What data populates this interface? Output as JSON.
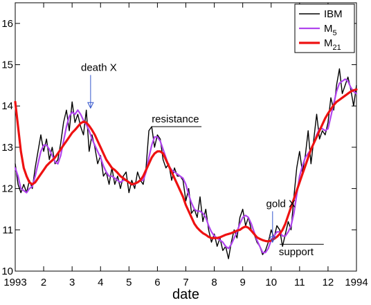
{
  "chart_data": {
    "type": "line",
    "xlabel": "date",
    "ylabel": "",
    "xlim": [
      1,
      13
    ],
    "ylim": [
      10,
      16.5
    ],
    "x_ticks": [
      {
        "value": 1,
        "label": "1993"
      },
      {
        "value": 2,
        "label": "2"
      },
      {
        "value": 3,
        "label": "3"
      },
      {
        "value": 4,
        "label": "4"
      },
      {
        "value": 5,
        "label": "5"
      },
      {
        "value": 6,
        "label": "6"
      },
      {
        "value": 7,
        "label": "7"
      },
      {
        "value": 8,
        "label": "8"
      },
      {
        "value": 9,
        "label": "9"
      },
      {
        "value": 10,
        "label": "10"
      },
      {
        "value": 11,
        "label": "11"
      },
      {
        "value": 12,
        "label": "12"
      },
      {
        "value": 13,
        "label": "1994"
      }
    ],
    "y_ticks": [
      10,
      11,
      12,
      13,
      14,
      15,
      16
    ],
    "grid": false,
    "legend_position": "top-right",
    "series": [
      {
        "name": "IBM",
        "color": "#000000",
        "x": [
          1.0,
          1.1,
          1.2,
          1.3,
          1.4,
          1.5,
          1.6,
          1.7,
          1.8,
          1.9,
          2.0,
          2.1,
          2.2,
          2.3,
          2.4,
          2.5,
          2.6,
          2.7,
          2.8,
          2.9,
          3.0,
          3.1,
          3.2,
          3.3,
          3.4,
          3.5,
          3.6,
          3.7,
          3.8,
          3.9,
          4.0,
          4.1,
          4.2,
          4.3,
          4.4,
          4.5,
          4.6,
          4.7,
          4.8,
          4.9,
          5.0,
          5.1,
          5.2,
          5.3,
          5.4,
          5.5,
          5.6,
          5.7,
          5.8,
          5.9,
          6.0,
          6.1,
          6.2,
          6.3,
          6.4,
          6.5,
          6.6,
          6.7,
          6.8,
          6.9,
          7.0,
          7.1,
          7.2,
          7.3,
          7.4,
          7.5,
          7.6,
          7.7,
          7.8,
          7.9,
          8.0,
          8.1,
          8.2,
          8.3,
          8.4,
          8.5,
          8.6,
          8.7,
          8.8,
          8.9,
          9.0,
          9.1,
          9.2,
          9.3,
          9.4,
          9.5,
          9.6,
          9.7,
          9.8,
          9.9,
          10.0,
          10.1,
          10.2,
          10.3,
          10.4,
          10.5,
          10.6,
          10.7,
          10.8,
          10.9,
          11.0,
          11.1,
          11.2,
          11.3,
          11.4,
          11.5,
          11.6,
          11.7,
          11.8,
          11.9,
          12.0,
          12.1,
          12.2,
          12.3,
          12.4,
          12.5,
          12.6,
          12.7,
          12.8,
          12.9,
          13.0
        ],
        "values": [
          12.6,
          12.1,
          11.9,
          12.1,
          11.9,
          12.2,
          12.0,
          12.5,
          12.9,
          13.3,
          12.9,
          13.2,
          12.7,
          13.0,
          12.6,
          12.7,
          13.1,
          13.6,
          13.9,
          13.4,
          14.1,
          13.6,
          13.8,
          13.5,
          13.3,
          13.9,
          12.9,
          13.3,
          13.0,
          12.6,
          12.8,
          12.3,
          12.4,
          12.1,
          12.5,
          12.1,
          12.3,
          12.0,
          12.3,
          12.4,
          11.9,
          12.2,
          12.0,
          12.4,
          12.2,
          12.1,
          12.5,
          13.4,
          13.5,
          13.0,
          13.3,
          13.2,
          12.7,
          12.5,
          12.6,
          12.2,
          12.5,
          12.3,
          12.3,
          12.2,
          11.7,
          12.0,
          11.4,
          11.5,
          11.3,
          11.8,
          11.2,
          11.5,
          11.0,
          10.7,
          10.9,
          10.6,
          10.8,
          10.5,
          10.6,
          10.3,
          10.7,
          11.0,
          10.8,
          11.3,
          11.5,
          11.1,
          11.3,
          11.0,
          10.9,
          10.7,
          10.6,
          10.4,
          10.5,
          10.7,
          11.0,
          10.8,
          11.1,
          11.0,
          10.6,
          10.9,
          11.2,
          11.0,
          11.8,
          12.5,
          12.9,
          12.4,
          12.8,
          13.4,
          12.6,
          13.2,
          13.8,
          13.2,
          13.4,
          13.3,
          13.6,
          14.2,
          13.9,
          14.5,
          14.9,
          14.3,
          14.5,
          14.7,
          14.4,
          14.0,
          14.5
        ],
        "line_width": 1.4
      },
      {
        "name": "M5",
        "color": "#b044ee",
        "x": [
          1.0,
          1.1,
          1.2,
          1.3,
          1.4,
          1.5,
          1.6,
          1.7,
          1.8,
          1.9,
          2.0,
          2.1,
          2.2,
          2.3,
          2.4,
          2.5,
          2.6,
          2.7,
          2.8,
          2.9,
          3.0,
          3.1,
          3.2,
          3.3,
          3.4,
          3.5,
          3.6,
          3.7,
          3.8,
          3.9,
          4.0,
          4.1,
          4.2,
          4.3,
          4.4,
          4.5,
          4.6,
          4.7,
          4.8,
          4.9,
          5.0,
          5.1,
          5.2,
          5.3,
          5.4,
          5.5,
          5.6,
          5.7,
          5.8,
          5.9,
          6.0,
          6.1,
          6.2,
          6.3,
          6.4,
          6.5,
          6.6,
          6.7,
          6.8,
          6.9,
          7.0,
          7.1,
          7.2,
          7.3,
          7.4,
          7.5,
          7.6,
          7.7,
          7.8,
          7.9,
          8.0,
          8.1,
          8.2,
          8.3,
          8.4,
          8.5,
          8.6,
          8.7,
          8.8,
          8.9,
          9.0,
          9.1,
          9.2,
          9.3,
          9.4,
          9.5,
          9.6,
          9.7,
          9.8,
          9.9,
          10.0,
          10.1,
          10.2,
          10.3,
          10.4,
          10.5,
          10.6,
          10.7,
          10.8,
          10.9,
          11.0,
          11.1,
          11.2,
          11.3,
          11.4,
          11.5,
          11.6,
          11.7,
          11.8,
          11.9,
          12.0,
          12.1,
          12.2,
          12.3,
          12.4,
          12.5,
          12.6,
          12.7,
          12.8,
          12.9,
          13.0
        ],
        "values": [
          12.5,
          12.3,
          12.0,
          11.95,
          11.9,
          12.0,
          12.05,
          12.3,
          12.6,
          12.9,
          13.05,
          13.05,
          12.95,
          12.8,
          12.65,
          12.6,
          12.8,
          13.15,
          13.5,
          13.75,
          13.85,
          13.8,
          13.9,
          13.8,
          13.65,
          13.55,
          13.4,
          13.2,
          13.05,
          12.9,
          12.75,
          12.55,
          12.4,
          12.3,
          12.3,
          12.25,
          12.2,
          12.15,
          12.2,
          12.2,
          12.15,
          12.1,
          12.1,
          12.15,
          12.2,
          12.2,
          12.4,
          12.75,
          13.05,
          13.25,
          13.25,
          13.15,
          12.95,
          12.75,
          12.55,
          12.45,
          12.4,
          12.35,
          12.3,
          12.25,
          12.1,
          11.85,
          11.65,
          11.5,
          11.45,
          11.45,
          11.4,
          11.3,
          11.1,
          10.95,
          10.85,
          10.8,
          10.75,
          10.7,
          10.6,
          10.55,
          10.65,
          10.8,
          10.95,
          11.15,
          11.3,
          11.35,
          11.3,
          11.15,
          10.95,
          10.75,
          10.6,
          10.45,
          10.45,
          10.55,
          10.75,
          10.85,
          10.95,
          10.95,
          10.85,
          10.85,
          10.95,
          11.1,
          11.4,
          11.85,
          12.3,
          12.55,
          12.75,
          12.85,
          12.95,
          13.1,
          13.3,
          13.45,
          13.45,
          13.4,
          13.45,
          13.75,
          14.05,
          14.35,
          14.55,
          14.6,
          14.65,
          14.6,
          14.45,
          14.35,
          14.3
        ],
        "line_width": 2.2
      },
      {
        "name": "M21",
        "color": "#ee1111",
        "x": [
          1.0,
          1.1,
          1.2,
          1.3,
          1.4,
          1.5,
          1.6,
          1.7,
          1.8,
          1.9,
          2.0,
          2.1,
          2.2,
          2.3,
          2.4,
          2.5,
          2.6,
          2.7,
          2.8,
          2.9,
          3.0,
          3.1,
          3.2,
          3.3,
          3.4,
          3.5,
          3.6,
          3.7,
          3.8,
          3.9,
          4.0,
          4.1,
          4.2,
          4.3,
          4.4,
          4.5,
          4.6,
          4.7,
          4.8,
          4.9,
          5.0,
          5.1,
          5.2,
          5.3,
          5.4,
          5.5,
          5.6,
          5.7,
          5.8,
          5.9,
          6.0,
          6.1,
          6.2,
          6.3,
          6.4,
          6.5,
          6.6,
          6.7,
          6.8,
          6.9,
          7.0,
          7.1,
          7.2,
          7.3,
          7.4,
          7.5,
          7.6,
          7.7,
          7.8,
          7.9,
          8.0,
          8.1,
          8.2,
          8.3,
          8.4,
          8.5,
          8.6,
          8.7,
          8.8,
          8.9,
          9.0,
          9.1,
          9.2,
          9.3,
          9.4,
          9.5,
          9.6,
          9.7,
          9.8,
          9.9,
          10.0,
          10.1,
          10.2,
          10.3,
          10.4,
          10.5,
          10.6,
          10.7,
          10.8,
          10.9,
          11.0,
          11.1,
          11.2,
          11.3,
          11.4,
          11.5,
          11.6,
          11.7,
          11.8,
          11.9,
          12.0,
          12.1,
          12.2,
          12.3,
          12.4,
          12.5,
          12.6,
          12.7,
          12.8,
          12.9,
          13.0
        ],
        "values": [
          14.1,
          13.5,
          12.9,
          12.5,
          12.3,
          12.15,
          12.1,
          12.15,
          12.25,
          12.35,
          12.45,
          12.55,
          12.62,
          12.68,
          12.75,
          12.85,
          12.95,
          13.05,
          13.15,
          13.25,
          13.35,
          13.42,
          13.5,
          13.58,
          13.62,
          13.6,
          13.52,
          13.42,
          13.3,
          13.15,
          13.0,
          12.85,
          12.7,
          12.6,
          12.5,
          12.45,
          12.38,
          12.3,
          12.25,
          12.2,
          12.15,
          12.1,
          12.12,
          12.15,
          12.2,
          12.3,
          12.45,
          12.6,
          12.75,
          12.85,
          12.9,
          12.9,
          12.85,
          12.7,
          12.55,
          12.4,
          12.25,
          12.1,
          11.95,
          11.8,
          11.6,
          11.45,
          11.3,
          11.15,
          11.05,
          10.98,
          10.92,
          10.88,
          10.83,
          10.8,
          10.8,
          10.8,
          10.82,
          10.85,
          10.88,
          10.9,
          10.92,
          10.95,
          10.98,
          11.0,
          11.05,
          11.08,
          11.05,
          10.98,
          10.9,
          10.82,
          10.78,
          10.75,
          10.73,
          10.72,
          10.74,
          10.78,
          10.83,
          10.9,
          11.0,
          11.15,
          11.35,
          11.55,
          11.75,
          11.95,
          12.15,
          12.35,
          12.55,
          12.75,
          12.95,
          13.1,
          13.25,
          13.4,
          13.55,
          13.7,
          13.82,
          13.92,
          14.02,
          14.1,
          14.15,
          14.2,
          14.25,
          14.3,
          14.35,
          14.38,
          14.4
        ],
        "line_width": 3.2
      }
    ],
    "annotations": [
      {
        "text": "death X",
        "kind": "arrow-down",
        "x": 3.65,
        "y_from": 14.75,
        "y_to": 13.95
      },
      {
        "text": "resistance",
        "kind": "hline-above",
        "x1": 5.8,
        "x2": 7.55,
        "y": 13.5
      },
      {
        "text": "gold X",
        "kind": "arrow-down",
        "x": 10.05,
        "y_from": 11.45,
        "y_to": 10.7
      },
      {
        "text": "support",
        "kind": "hline-below",
        "x1": 10.3,
        "x2": 11.85,
        "y": 10.65
      }
    ]
  }
}
